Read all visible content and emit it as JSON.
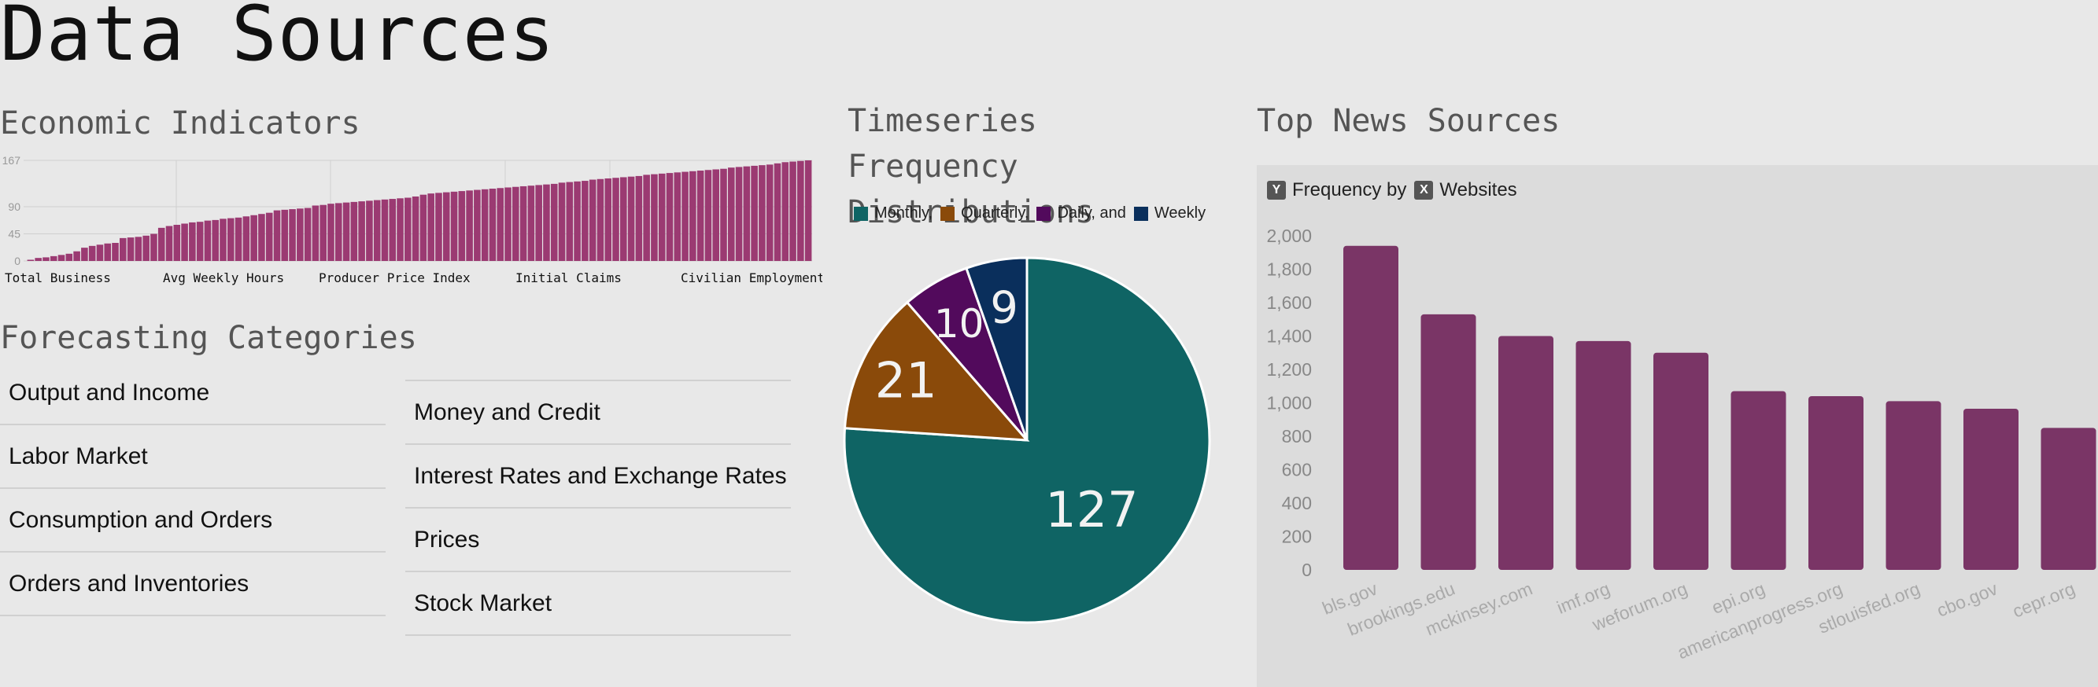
{
  "page": {
    "title": "Data Sources"
  },
  "colors": {
    "accent_bar": "#7a3566",
    "econ_bar": "#9b3a72",
    "monthly": "#0f6464",
    "quarterly": "#8a4a0a",
    "daily": "#520a5c",
    "weekly": "#0a2f5c"
  },
  "economic_indicators": {
    "title": "Economic Indicators",
    "chart_data": {
      "type": "bar",
      "title": "Economic Indicators",
      "y_ticks": [
        "0",
        "45",
        "90",
        "167"
      ],
      "ylim": [
        0,
        167
      ],
      "x_labels": [
        "Total Business",
        "Avg Weekly Hours",
        "Producer Price Index",
        "Initial Claims",
        "Civilian Employment"
      ],
      "values": [
        2,
        5,
        6,
        8,
        10,
        12,
        16,
        22,
        25,
        27,
        29,
        30,
        38,
        39,
        40,
        42,
        45,
        55,
        58,
        60,
        62,
        64,
        65,
        67,
        68,
        70,
        71,
        72,
        74,
        76,
        78,
        80,
        84,
        85,
        86,
        87,
        88,
        92,
        93,
        95,
        96,
        97,
        98,
        99,
        100,
        101,
        102,
        103,
        104,
        105,
        107,
        110,
        112,
        113,
        114,
        115,
        116,
        117,
        118,
        119,
        120,
        121,
        122,
        123,
        124,
        125,
        126,
        127,
        128,
        130,
        131,
        132,
        133,
        135,
        136,
        137,
        138,
        139,
        140,
        141,
        143,
        144,
        145,
        146,
        147,
        148,
        149,
        150,
        151,
        152,
        153,
        155,
        156,
        157,
        158,
        159,
        160,
        162,
        164,
        165,
        166,
        167
      ]
    }
  },
  "forecasting": {
    "title": "Forecasting Categories",
    "left": [
      "Output and Income",
      "Labor Market",
      "Consumption and Orders",
      "Orders and Inventories"
    ],
    "right": [
      "Money and Credit",
      "Interest Rates and Exchange Rates",
      "Prices",
      "Stock Market"
    ]
  },
  "timeseries": {
    "title": "Timeseries Frequency Distributions",
    "legend": [
      "Monthly,",
      "Quarterly,",
      "Daily, and",
      "Weekly"
    ],
    "chart_data": {
      "type": "pie",
      "labels": [
        "Monthly",
        "Quarterly",
        "Daily",
        "Weekly"
      ],
      "values": [
        127,
        21,
        10,
        9
      ],
      "data_labels": [
        "127",
        "21",
        "10",
        "9"
      ]
    }
  },
  "news": {
    "title": "Top News Sources",
    "y_badge": "Y",
    "y_text": "Frequency by",
    "x_badge": "X",
    "x_text": "Websites",
    "chart_data": {
      "type": "bar",
      "categories": [
        "bls.gov",
        "brookings.edu",
        "mckinsey.com",
        "imf.org",
        "weforum.org",
        "epi.org",
        "americanprogress.org",
        "stlouisfed.org",
        "cbo.gov",
        "cepr.org"
      ],
      "values": [
        1940,
        1530,
        1400,
        1370,
        1300,
        1070,
        1040,
        1010,
        965,
        850
      ],
      "y_ticks": [
        "0",
        "200",
        "400",
        "600",
        "800",
        "1,000",
        "1,200",
        "1,400",
        "1,600",
        "1,800",
        "2,000"
      ],
      "ylim": [
        0,
        2000
      ],
      "xlabel": "Websites",
      "ylabel": "Frequency"
    }
  }
}
